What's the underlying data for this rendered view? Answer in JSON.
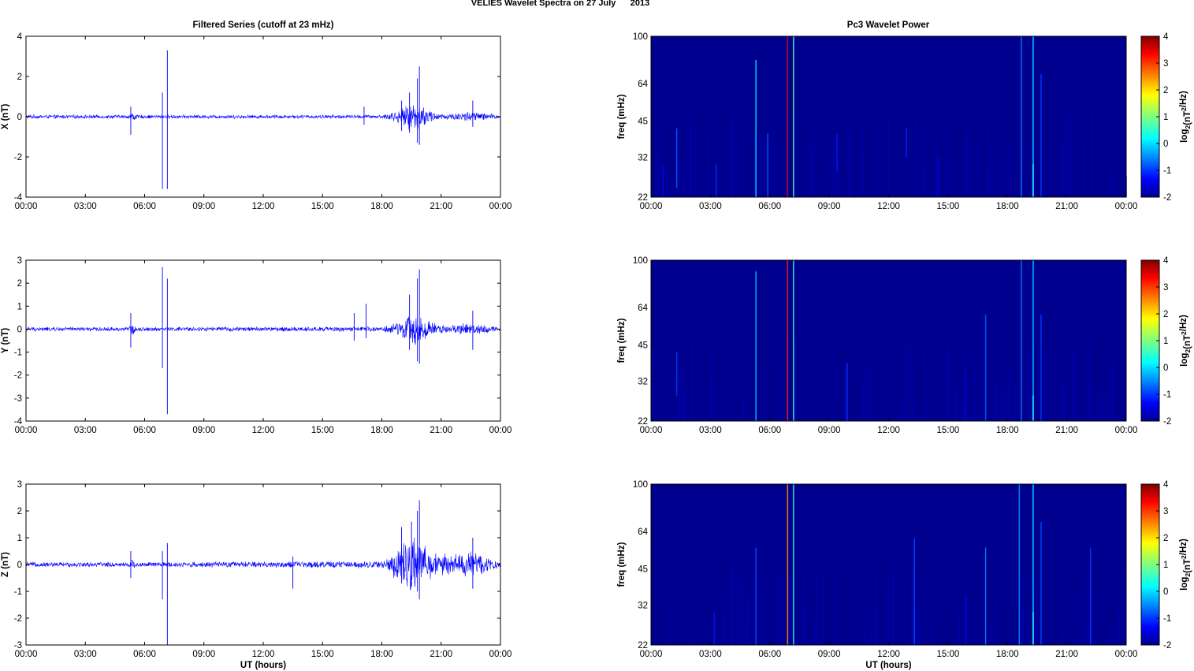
{
  "figure": {
    "title": "VELIES Wavelet Spectra on 27 July      2013",
    "left_title": "Filtered Series (cutoff at 23 mHz)",
    "right_title": "Pc3 Wavelet Power",
    "time_xlabel": "UT (hours)"
  },
  "colors": {
    "trace": "#0000ff",
    "background_power": "#00008f",
    "axis": "#000000"
  },
  "chart_data": [
    {
      "type": "line",
      "name": "X component",
      "ylabel": "X (nT)",
      "ylim": [
        -4,
        4
      ],
      "yticks": [
        "4",
        "2",
        "0",
        "-2",
        "-4"
      ],
      "ytick_values": [
        4,
        2,
        0,
        -2,
        -4
      ],
      "xlim": [
        0,
        24
      ],
      "xticks": [
        "00:00",
        "03:00",
        "06:00",
        "09:00",
        "12:00",
        "15:00",
        "18:00",
        "21:00",
        "00:00"
      ],
      "noise_profile": [
        [
          0,
          0.1
        ],
        [
          5.2,
          0.1
        ],
        [
          5.4,
          0.35
        ],
        [
          5.6,
          0.1
        ],
        [
          18.0,
          0.1
        ],
        [
          19.0,
          0.4
        ],
        [
          19.7,
          0.9
        ],
        [
          20.0,
          0.6
        ],
        [
          21.0,
          0.15
        ],
        [
          22.5,
          0.3
        ],
        [
          24,
          0.1
        ]
      ],
      "spikes": [
        [
          5.3,
          0.5,
          -0.9
        ],
        [
          6.9,
          1.2,
          -3.6
        ],
        [
          7.15,
          3.3,
          -3.6
        ],
        [
          17.1,
          0.5,
          -0.4
        ],
        [
          19.0,
          0.8,
          -0.7
        ],
        [
          19.4,
          1.2,
          -0.8
        ],
        [
          19.8,
          1.9,
          -1.3
        ],
        [
          19.9,
          2.5,
          -1.4
        ],
        [
          22.6,
          0.8,
          -0.5
        ]
      ]
    },
    {
      "type": "line",
      "name": "Y component",
      "ylabel": "Y (nT)",
      "ylim": [
        -4,
        3
      ],
      "yticks": [
        "3",
        "2",
        "1",
        "0",
        "-1",
        "-2",
        "-3",
        "-4"
      ],
      "ytick_values": [
        3,
        2,
        1,
        0,
        -1,
        -2,
        -3,
        -4
      ],
      "xlim": [
        0,
        24
      ],
      "xticks": [
        "00:00",
        "03:00",
        "06:00",
        "09:00",
        "12:00",
        "15:00",
        "18:00",
        "21:00",
        "00:00"
      ],
      "noise_profile": [
        [
          0,
          0.1
        ],
        [
          5.2,
          0.1
        ],
        [
          5.4,
          0.3
        ],
        [
          5.6,
          0.1
        ],
        [
          18.0,
          0.12
        ],
        [
          19.0,
          0.4
        ],
        [
          19.7,
          0.8
        ],
        [
          20.0,
          0.6
        ],
        [
          21.0,
          0.2
        ],
        [
          22.5,
          0.3
        ],
        [
          24,
          0.1
        ]
      ],
      "spikes": [
        [
          5.3,
          0.7,
          -0.8
        ],
        [
          6.9,
          2.7,
          -1.7
        ],
        [
          7.15,
          2.2,
          -3.7
        ],
        [
          16.6,
          0.7,
          -0.5
        ],
        [
          17.2,
          1.1,
          -0.4
        ],
        [
          19.4,
          1.5,
          -0.9
        ],
        [
          19.8,
          2.2,
          -1.4
        ],
        [
          19.9,
          2.6,
          -1.5
        ],
        [
          22.6,
          0.8,
          -0.9
        ]
      ]
    },
    {
      "type": "line",
      "name": "Z component",
      "ylabel": "Z (nT)",
      "ylim": [
        -3,
        3
      ],
      "yticks": [
        "3",
        "2",
        "1",
        "0",
        "-1",
        "-2",
        "-3"
      ],
      "ytick_values": [
        3,
        2,
        1,
        0,
        -1,
        -2,
        -3
      ],
      "xlim": [
        0,
        24
      ],
      "xticks": [
        "00:00",
        "03:00",
        "06:00",
        "09:00",
        "12:00",
        "15:00",
        "18:00",
        "21:00",
        "00:00"
      ],
      "xlabel": "UT (hours)",
      "noise_profile": [
        [
          0,
          0.1
        ],
        [
          5.2,
          0.1
        ],
        [
          5.4,
          0.25
        ],
        [
          5.6,
          0.1
        ],
        [
          18.0,
          0.15
        ],
        [
          18.8,
          0.7
        ],
        [
          19.7,
          1.2
        ],
        [
          20.0,
          0.8
        ],
        [
          20.8,
          0.5
        ],
        [
          21.5,
          0.4
        ],
        [
          22.6,
          0.6
        ],
        [
          24,
          0.1
        ]
      ],
      "spikes": [
        [
          5.3,
          0.5,
          -0.5
        ],
        [
          6.9,
          0.5,
          -1.3
        ],
        [
          7.15,
          0.8,
          -3.0
        ],
        [
          13.5,
          0.3,
          -0.9
        ],
        [
          19.0,
          1.4,
          -0.7
        ],
        [
          19.5,
          1.6,
          -0.8
        ],
        [
          19.8,
          2.0,
          -1.0
        ],
        [
          19.9,
          2.4,
          -1.3
        ],
        [
          22.6,
          1.0,
          -0.9
        ]
      ]
    },
    {
      "type": "heatmap",
      "name": "X wavelet power",
      "ylabel": "freq (mHz)",
      "yscale": "log",
      "ylim": [
        22,
        100
      ],
      "yticks": [
        "100",
        "64",
        "45",
        "32",
        "22"
      ],
      "ytick_values": [
        100,
        64,
        45,
        32,
        22
      ],
      "xlim": [
        0,
        24
      ],
      "xticks": [
        "00:00",
        "03:00",
        "06:00",
        "09:00",
        "12:00",
        "15:00",
        "18:00",
        "21:00",
        "00:00"
      ],
      "colorbar": {
        "label": "log2(nT2/Hz)",
        "range": [
          -2,
          4
        ],
        "ticks": [
          "4",
          "3",
          "2",
          "1",
          "0",
          "-1",
          "-2"
        ],
        "tick_values": [
          4,
          3,
          2,
          1,
          0,
          -1,
          -2
        ]
      },
      "features": [
        [
          6.9,
          0.06,
          22,
          100,
          3.5
        ],
        [
          7.2,
          0.05,
          22,
          100,
          0.8
        ],
        [
          5.3,
          0.06,
          22,
          80,
          0.0
        ],
        [
          5.9,
          0.05,
          22,
          40,
          -0.8
        ],
        [
          1.3,
          0.05,
          24,
          42,
          -0.8
        ],
        [
          3.3,
          0.05,
          22,
          30,
          -1.1
        ],
        [
          9.4,
          0.05,
          28,
          40,
          -1.2
        ],
        [
          12.9,
          0.05,
          32,
          42,
          -1.1
        ],
        [
          18.7,
          0.06,
          22,
          100,
          -0.6
        ],
        [
          19.3,
          0.07,
          22,
          100,
          -0.2
        ],
        [
          19.3,
          0.05,
          22,
          30,
          0.3
        ],
        [
          19.7,
          0.05,
          22,
          70,
          -1.0
        ],
        [
          14.5,
          0.05,
          22,
          32,
          -1.4
        ],
        [
          0.6,
          0.05,
          22,
          30,
          -1.4
        ]
      ]
    },
    {
      "type": "heatmap",
      "name": "Y wavelet power",
      "ylabel": "freq (mHz)",
      "yscale": "log",
      "ylim": [
        22,
        100
      ],
      "yticks": [
        "100",
        "64",
        "45",
        "32",
        "22"
      ],
      "ytick_values": [
        100,
        64,
        45,
        32,
        22
      ],
      "xlim": [
        0,
        24
      ],
      "xticks": [
        "00:00",
        "03:00",
        "06:00",
        "09:00",
        "12:00",
        "15:00",
        "18:00",
        "21:00",
        "00:00"
      ],
      "colorbar": {
        "label": "log2(nT2/Hz)",
        "range": [
          -2,
          4
        ],
        "ticks": [
          "4",
          "3",
          "2",
          "1",
          "0",
          "-1",
          "-2"
        ],
        "tick_values": [
          4,
          3,
          2,
          1,
          0,
          -1,
          -2
        ]
      },
      "features": [
        [
          6.9,
          0.06,
          22,
          100,
          3.2
        ],
        [
          7.2,
          0.05,
          22,
          100,
          0.6
        ],
        [
          5.3,
          0.06,
          22,
          90,
          -0.2
        ],
        [
          1.3,
          0.05,
          28,
          42,
          -1.0
        ],
        [
          9.9,
          0.05,
          22,
          38,
          -1.0
        ],
        [
          16.9,
          0.05,
          22,
          60,
          -0.8
        ],
        [
          18.7,
          0.06,
          22,
          100,
          -0.6
        ],
        [
          19.3,
          0.07,
          22,
          100,
          -0.3
        ],
        [
          19.3,
          0.05,
          22,
          28,
          0.2
        ],
        [
          19.7,
          0.05,
          22,
          60,
          -1.0
        ],
        [
          15.9,
          0.05,
          22,
          35,
          -1.4
        ]
      ]
    },
    {
      "type": "heatmap",
      "name": "Z wavelet power",
      "ylabel": "freq (mHz)",
      "yscale": "log",
      "ylim": [
        22,
        100
      ],
      "yticks": [
        "100",
        "64",
        "45",
        "32",
        "22"
      ],
      "ytick_values": [
        100,
        64,
        45,
        32,
        22
      ],
      "xlim": [
        0,
        24
      ],
      "xticks": [
        "00:00",
        "03:00",
        "06:00",
        "09:00",
        "12:00",
        "15:00",
        "18:00",
        "21:00",
        "00:00"
      ],
      "xlabel": "UT (hours)",
      "colorbar": {
        "label": "log2(nT2/Hz)",
        "range": [
          -2,
          4
        ],
        "ticks": [
          "4",
          "3",
          "2",
          "1",
          "0",
          "-1",
          "-2"
        ],
        "tick_values": [
          4,
          3,
          2,
          1,
          0,
          -1,
          -2
        ]
      },
      "features": [
        [
          6.9,
          0.06,
          22,
          100,
          2.5
        ],
        [
          7.2,
          0.05,
          22,
          100,
          0.4
        ],
        [
          5.3,
          0.06,
          22,
          55,
          -0.9
        ],
        [
          3.2,
          0.05,
          22,
          30,
          -1.2
        ],
        [
          13.3,
          0.05,
          22,
          60,
          -0.9
        ],
        [
          16.9,
          0.05,
          22,
          55,
          -0.6
        ],
        [
          18.6,
          0.06,
          22,
          100,
          -0.5
        ],
        [
          19.3,
          0.07,
          22,
          100,
          -0.2
        ],
        [
          19.3,
          0.05,
          22,
          30,
          0.3
        ],
        [
          19.7,
          0.05,
          22,
          70,
          -0.9
        ],
        [
          22.2,
          0.05,
          22,
          55,
          -1.0
        ],
        [
          15.9,
          0.05,
          22,
          35,
          -1.3
        ]
      ]
    }
  ]
}
